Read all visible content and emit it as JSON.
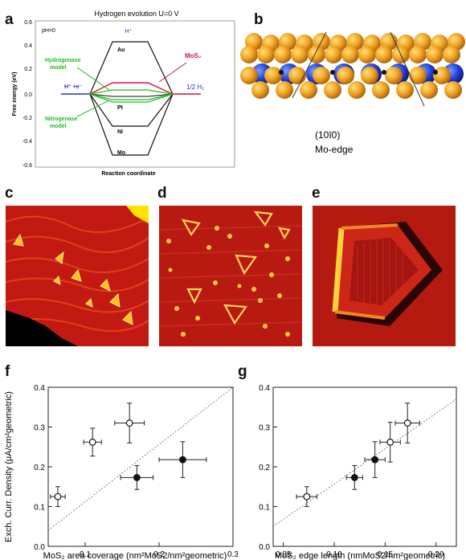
{
  "panel_letters": {
    "a": "a",
    "b": "b",
    "c": "c",
    "d": "d",
    "e": "e",
    "f": "f",
    "g": "g"
  },
  "colors": {
    "mos2": "#d4143c",
    "green": "#22bb22",
    "blue": "#2233cc",
    "stm_bg": "#c21a12",
    "stm_feature": "#ffcc00",
    "dotted": "#9a3a8a"
  },
  "panel_a": {
    "title": "Hydrogen evolution U=0 V",
    "ph": "pH=0",
    "ylabel": "Free energy (eV)",
    "xlabel": "Reaction coordinate",
    "hplus": "H⁺",
    "hplus_e": "H⁺ +e⁻",
    "half_h2": "1/2 H₂",
    "au": "Au",
    "mos2": "MoS₂",
    "pt": "Pt",
    "ni": "Ni",
    "mo": "Mo",
    "hydrogenase": [
      "Hydrogenase",
      "model"
    ],
    "nitrogenase": [
      "Nitrogenase",
      "model"
    ],
    "yticks": [
      "0.6",
      "0.4",
      "0.2",
      "0.0",
      "-0.2",
      "-0.4",
      "-0.6"
    ]
  },
  "panel_b": {
    "miller": "(10ī0)",
    "edge": "Mo-edge"
  },
  "chart_data": [
    {
      "type": "scatter",
      "panel": "f",
      "xlabel": "MoS₂ area coverage (nm²MoS2/nm²geometric)",
      "ylabel": "Exch. Curr. Density (μA/cm²geometric)",
      "xlim": [
        0.05,
        0.3
      ],
      "ylim": [
        0.0,
        0.4
      ],
      "xticks": [
        "0.1",
        "0.2",
        "0.3"
      ],
      "yticks": [
        "0.0",
        "0.1",
        "0.2",
        "0.3",
        "0.4"
      ],
      "points": [
        {
          "x": 0.063,
          "y": 0.125,
          "xerr": 0.01,
          "yerr": 0.025,
          "filled": false
        },
        {
          "x": 0.11,
          "y": 0.262,
          "xerr": 0.012,
          "yerr": 0.035,
          "filled": false
        },
        {
          "x": 0.16,
          "y": 0.31,
          "xerr": 0.02,
          "yerr": 0.05,
          "filled": false
        },
        {
          "x": 0.17,
          "y": 0.173,
          "xerr": 0.022,
          "yerr": 0.03,
          "filled": true
        },
        {
          "x": 0.232,
          "y": 0.218,
          "xerr": 0.032,
          "yerr": 0.045,
          "filled": true
        }
      ],
      "fit": {
        "x": [
          0.05,
          0.3
        ],
        "y": [
          0.04,
          0.4
        ]
      }
    },
    {
      "type": "scatter",
      "panel": "g",
      "xlabel": "MoS₂ edge length (nmMoS2/nm²geometric)",
      "xlim": [
        0.04,
        0.22
      ],
      "ylim": [
        0.0,
        0.4
      ],
      "xticks": [
        "0.05",
        "0.10",
        "0.15",
        "0.20"
      ],
      "yticks": [
        "0.0",
        "0.1",
        "0.2",
        "0.3",
        "0.4"
      ],
      "points": [
        {
          "x": 0.073,
          "y": 0.125,
          "xerr": 0.01,
          "yerr": 0.025,
          "filled": false
        },
        {
          "x": 0.12,
          "y": 0.173,
          "xerr": 0.008,
          "yerr": 0.03,
          "filled": true
        },
        {
          "x": 0.14,
          "y": 0.218,
          "xerr": 0.01,
          "yerr": 0.045,
          "filled": true
        },
        {
          "x": 0.155,
          "y": 0.262,
          "xerr": 0.01,
          "yerr": 0.05,
          "filled": false
        },
        {
          "x": 0.172,
          "y": 0.31,
          "xerr": 0.012,
          "yerr": 0.05,
          "filled": false
        }
      ],
      "fit": {
        "x": [
          0.04,
          0.22
        ],
        "y": [
          0.05,
          0.37
        ]
      }
    }
  ]
}
